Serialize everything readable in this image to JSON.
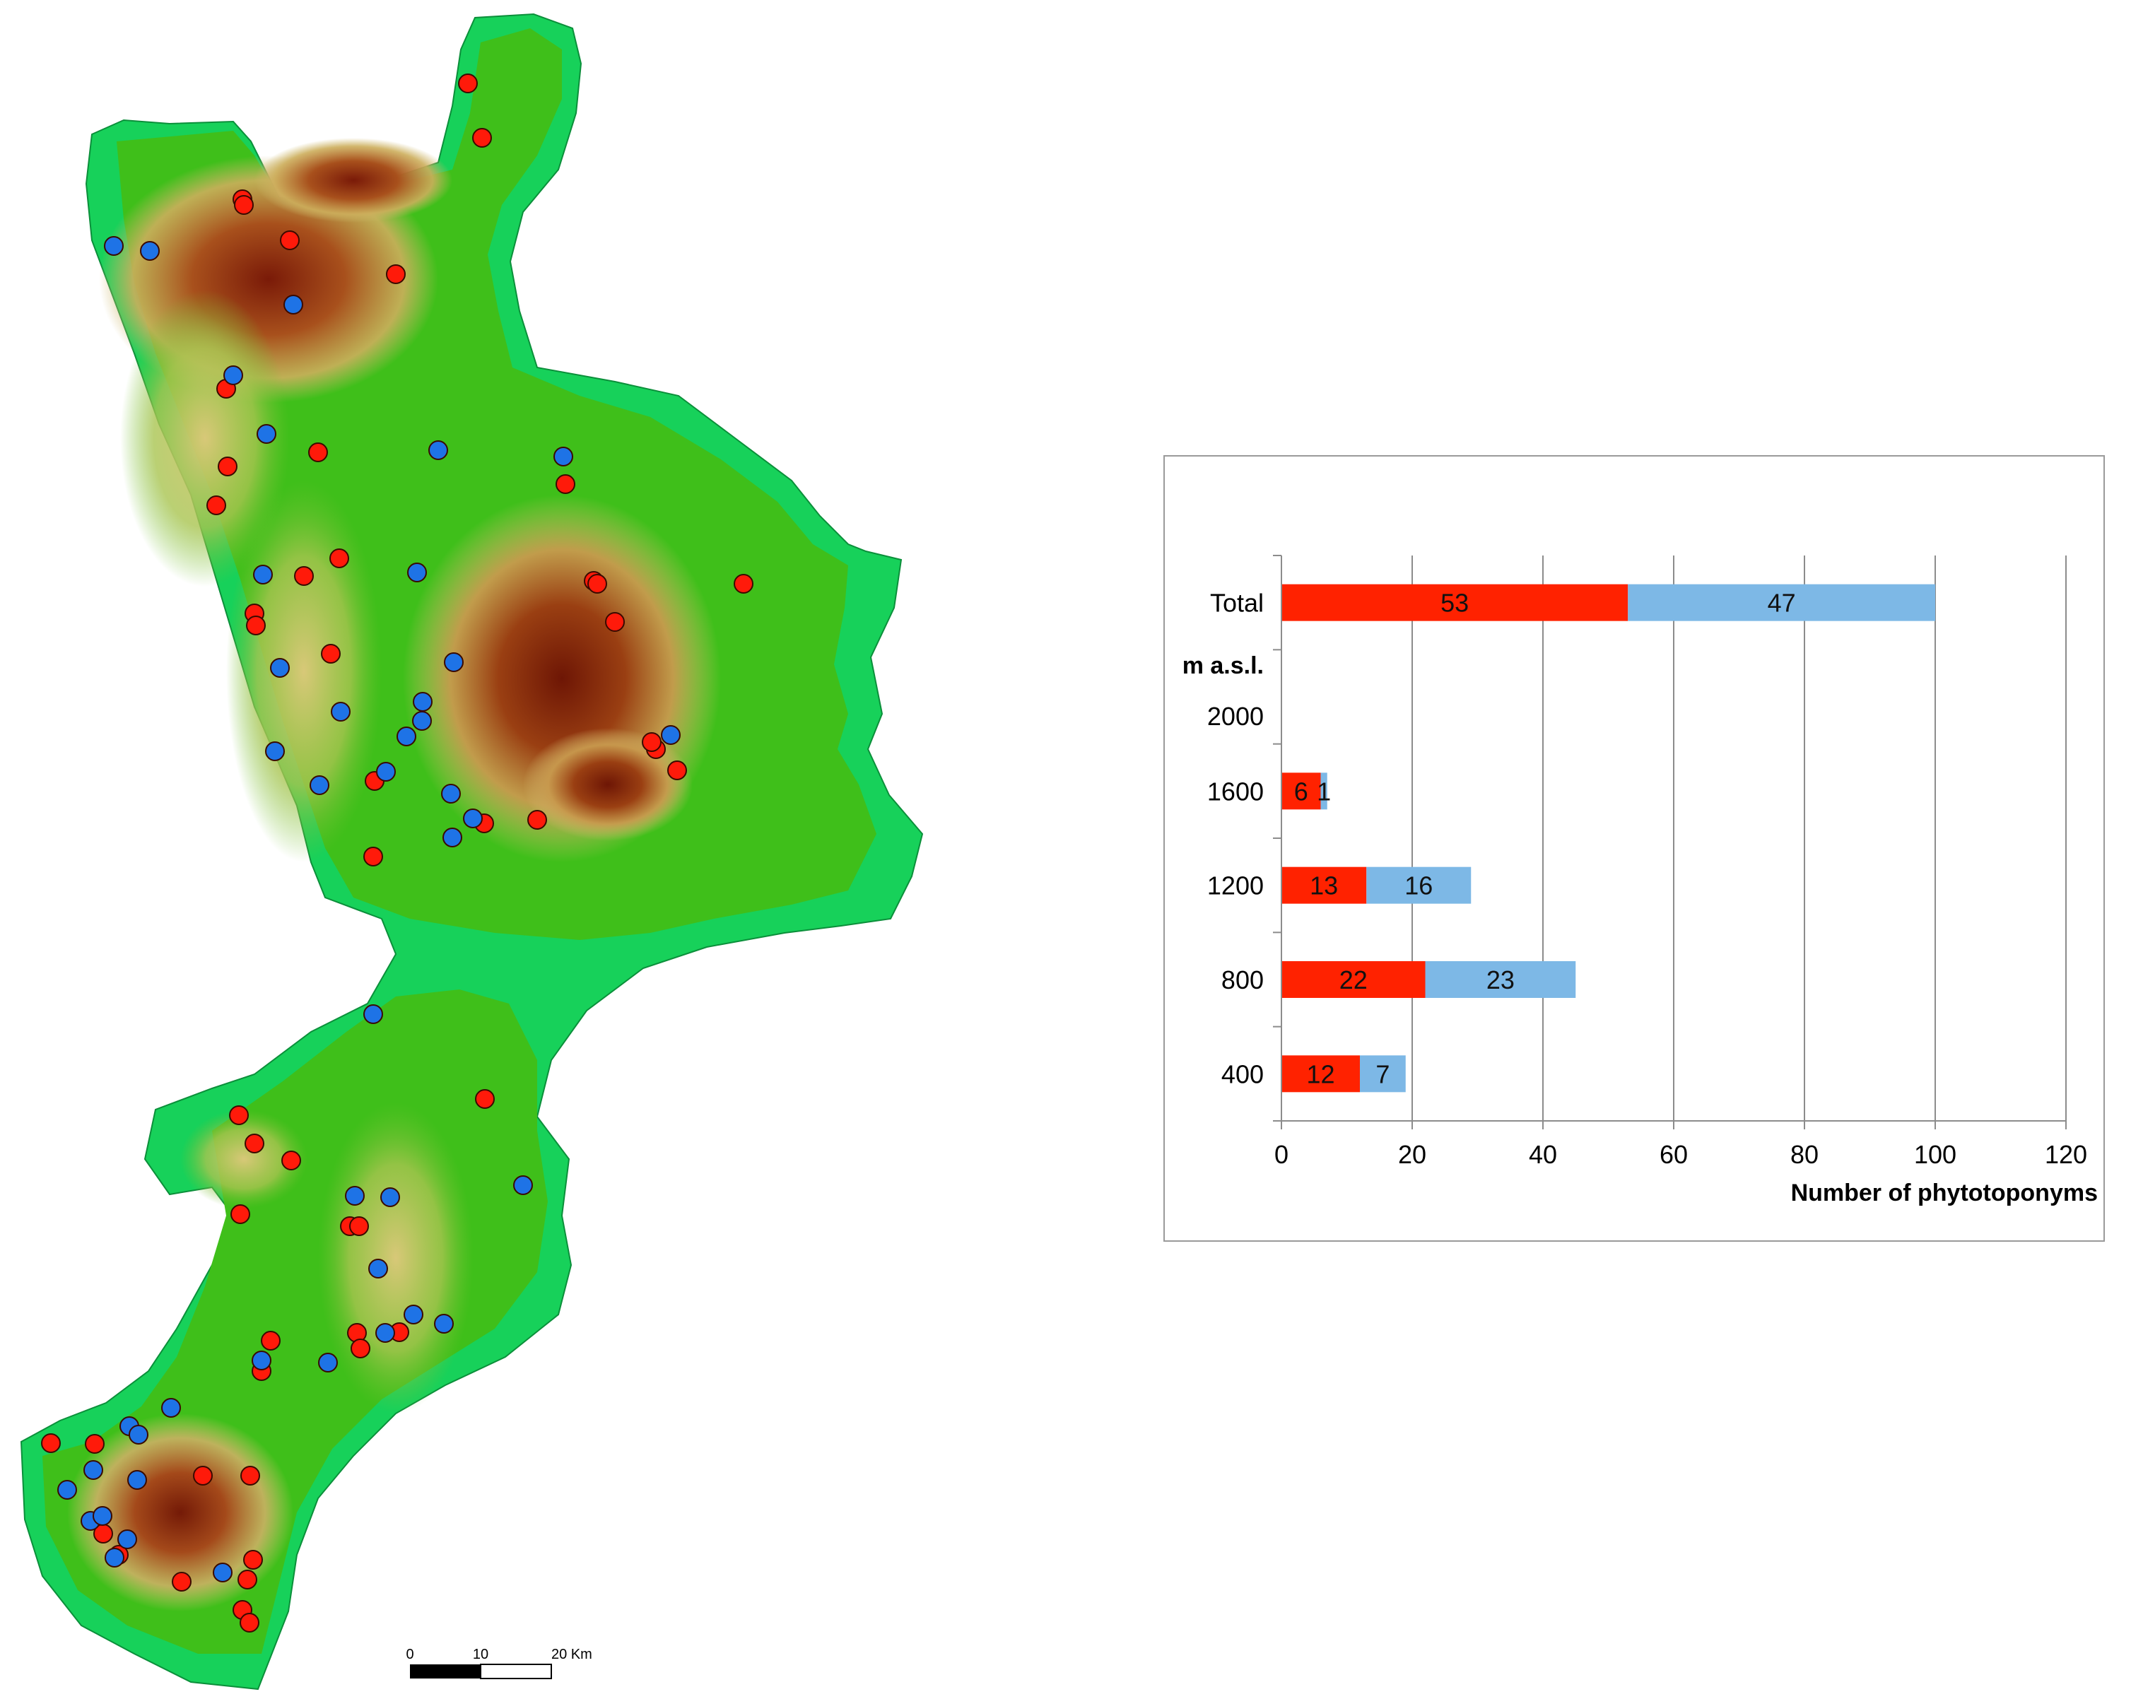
{
  "colors": {
    "red_point": "#ff1a0a",
    "blue_point": "#1e73e6",
    "bar_red": "#ff2200",
    "bar_blue": "#7db8e6",
    "lowland": "#17d15a",
    "hill": "#3fbf1a",
    "upland": "#d8c06b",
    "mountain": "#8a1f0c"
  },
  "map": {
    "scale_bar": {
      "ticks": [
        "0",
        "10",
        "20 Km"
      ]
    }
  },
  "chart_data": {
    "type": "bar",
    "orientation": "horizontal",
    "stacked": true,
    "categories": [
      "Total",
      "1600",
      "1200",
      "800",
      "400"
    ],
    "category_group_label": "m a.s.l.",
    "extra_tick_label": "2000",
    "series": [
      {
        "values": [
          53,
          6,
          13,
          22,
          12
        ],
        "color": "#ff2200"
      },
      {
        "values": [
          47,
          1,
          16,
          23,
          7
        ],
        "color": "#7db8e6"
      }
    ],
    "xlabel": "Number of phytotoponyms",
    "xlim": [
      0,
      120
    ],
    "xticks": [
      "0",
      "20",
      "40",
      "60",
      "80",
      "100",
      "120"
    ],
    "grid": "vertical"
  }
}
